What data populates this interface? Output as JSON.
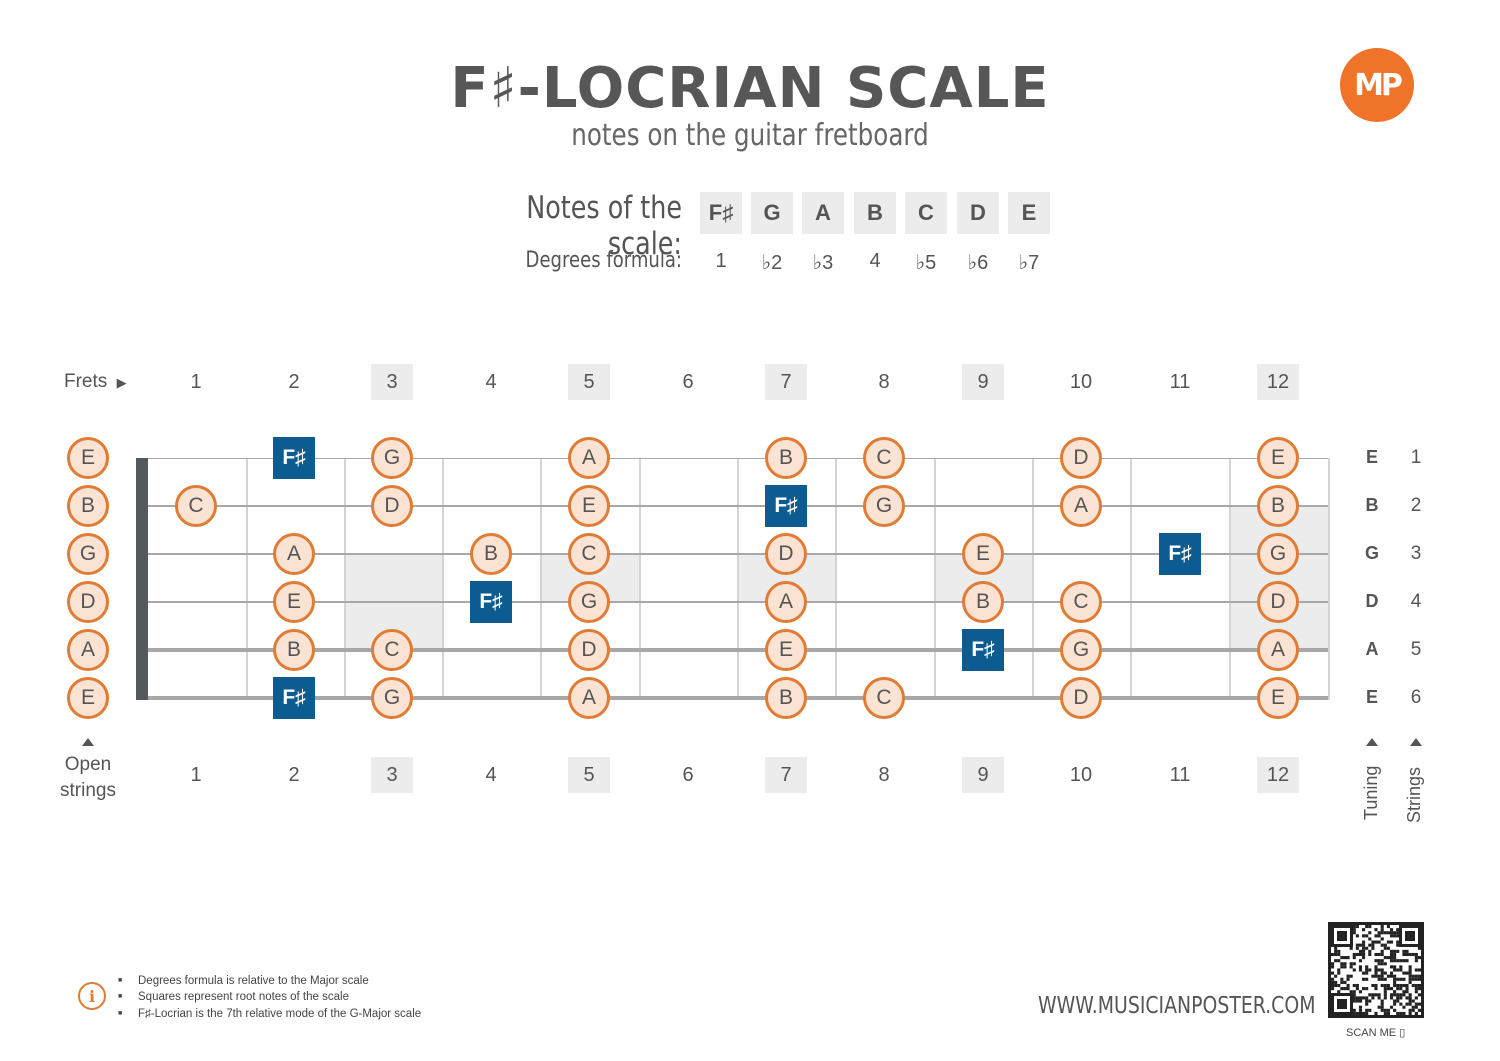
{
  "title": "F♯-LOCRIAN SCALE",
  "subtitle": "notes on the guitar fretboard",
  "logo_text": "MP",
  "notes_label": "Notes of the scale:",
  "degrees_label": "Degrees formula:",
  "scale_notes": [
    "F♯",
    "G",
    "A",
    "B",
    "C",
    "D",
    "E"
  ],
  "degrees": [
    "1",
    "♭2",
    "♭3",
    "4",
    "♭5",
    "♭6",
    "♭7"
  ],
  "frets_label": "Frets",
  "fret_numbers": [
    "1",
    "2",
    "3",
    "4",
    "5",
    "6",
    "7",
    "8",
    "9",
    "10",
    "11",
    "12"
  ],
  "marked_frets": [
    3,
    5,
    7,
    9,
    12
  ],
  "open_strings": [
    "E",
    "B",
    "G",
    "D",
    "A",
    "E"
  ],
  "open_strings_label_1": "Open",
  "open_strings_label_2": "strings",
  "tuning": [
    "E",
    "B",
    "G",
    "D",
    "A",
    "E"
  ],
  "string_numbers": [
    "1",
    "2",
    "3",
    "4",
    "5",
    "6"
  ],
  "tuning_label": "Tuning",
  "strings_label": "Strings",
  "fretboard_notes": [
    {
      "string": 1,
      "fret": 2,
      "note": "F♯",
      "root": true
    },
    {
      "string": 1,
      "fret": 3,
      "note": "G"
    },
    {
      "string": 1,
      "fret": 5,
      "note": "A"
    },
    {
      "string": 1,
      "fret": 7,
      "note": "B"
    },
    {
      "string": 1,
      "fret": 8,
      "note": "C"
    },
    {
      "string": 1,
      "fret": 10,
      "note": "D"
    },
    {
      "string": 1,
      "fret": 12,
      "note": "E"
    },
    {
      "string": 2,
      "fret": 1,
      "note": "C"
    },
    {
      "string": 2,
      "fret": 3,
      "note": "D"
    },
    {
      "string": 2,
      "fret": 5,
      "note": "E"
    },
    {
      "string": 2,
      "fret": 7,
      "note": "F♯",
      "root": true
    },
    {
      "string": 2,
      "fret": 8,
      "note": "G"
    },
    {
      "string": 2,
      "fret": 10,
      "note": "A"
    },
    {
      "string": 2,
      "fret": 12,
      "note": "B"
    },
    {
      "string": 3,
      "fret": 2,
      "note": "A"
    },
    {
      "string": 3,
      "fret": 4,
      "note": "B"
    },
    {
      "string": 3,
      "fret": 5,
      "note": "C"
    },
    {
      "string": 3,
      "fret": 7,
      "note": "D"
    },
    {
      "string": 3,
      "fret": 9,
      "note": "E"
    },
    {
      "string": 3,
      "fret": 11,
      "note": "F♯",
      "root": true
    },
    {
      "string": 3,
      "fret": 12,
      "note": "G"
    },
    {
      "string": 4,
      "fret": 2,
      "note": "E"
    },
    {
      "string": 4,
      "fret": 4,
      "note": "F♯",
      "root": true
    },
    {
      "string": 4,
      "fret": 5,
      "note": "G"
    },
    {
      "string": 4,
      "fret": 7,
      "note": "A"
    },
    {
      "string": 4,
      "fret": 9,
      "note": "B"
    },
    {
      "string": 4,
      "fret": 10,
      "note": "C"
    },
    {
      "string": 4,
      "fret": 12,
      "note": "D"
    },
    {
      "string": 5,
      "fret": 2,
      "note": "B"
    },
    {
      "string": 5,
      "fret": 3,
      "note": "C"
    },
    {
      "string": 5,
      "fret": 5,
      "note": "D"
    },
    {
      "string": 5,
      "fret": 7,
      "note": "E"
    },
    {
      "string": 5,
      "fret": 9,
      "note": "F♯",
      "root": true
    },
    {
      "string": 5,
      "fret": 10,
      "note": "G"
    },
    {
      "string": 5,
      "fret": 12,
      "note": "A"
    },
    {
      "string": 6,
      "fret": 2,
      "note": "F♯",
      "root": true
    },
    {
      "string": 6,
      "fret": 3,
      "note": "G"
    },
    {
      "string": 6,
      "fret": 5,
      "note": "A"
    },
    {
      "string": 6,
      "fret": 7,
      "note": "B"
    },
    {
      "string": 6,
      "fret": 8,
      "note": "C"
    },
    {
      "string": 6,
      "fret": 10,
      "note": "D"
    },
    {
      "string": 6,
      "fret": 12,
      "note": "E"
    }
  ],
  "footnotes": [
    "Degrees formula is relative to the Major scale",
    "Squares represent root notes of the scale",
    "F♯-Locrian is the 7th relative mode of the G-Major scale"
  ],
  "website": "WWW.MUSICIANPOSTER.COM",
  "scan_label": "SCAN ME",
  "colors": {
    "accent": "#e07c35",
    "note_fill": "#fbe3d3",
    "root_fill": "#0d5c91",
    "logo": "#ef7328"
  }
}
